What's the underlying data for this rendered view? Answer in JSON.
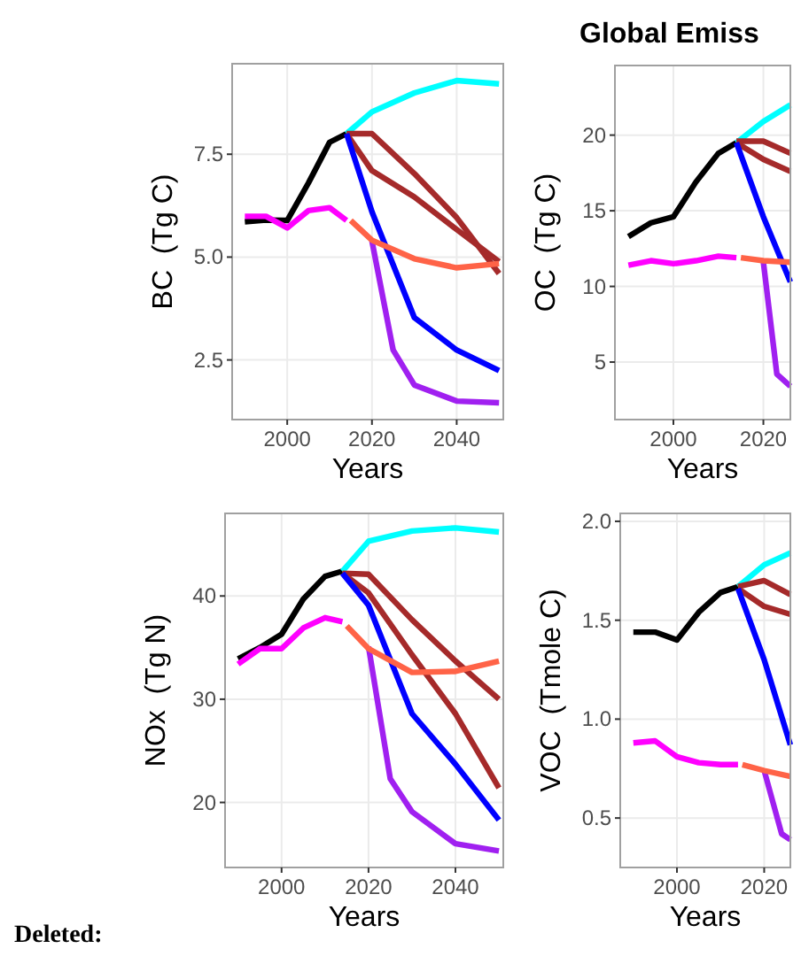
{
  "chart_data": [
    {
      "type": "line",
      "ylabel": "BC  (Tg C)",
      "xlabel": "Years",
      "xlim": [
        1987,
        2051
      ],
      "xticks": [
        2000,
        2020,
        2040
      ],
      "ylim": [
        1.05,
        9.7
      ],
      "yticks": [
        2.5,
        {
          "value": 5,
          "label": "5.0"
        },
        7.5
      ],
      "grid": true,
      "line_style": "solid",
      "series": [
        {
          "color": "#000000",
          "x": [
            1990,
            1995,
            2000,
            2005,
            2010,
            2014
          ],
          "values": [
            5.86,
            5.9,
            5.89,
            6.8,
            7.79,
            8.0
          ]
        },
        {
          "color": "#ff00ff",
          "x": [
            1990,
            1995,
            2000,
            2005,
            2010,
            2014
          ],
          "values": [
            5.99,
            5.99,
            5.71,
            6.13,
            6.2,
            5.89
          ]
        },
        {
          "color": "#00ffff",
          "x": [
            2014,
            2020,
            2030,
            2040,
            2050
          ],
          "values": [
            8.0,
            8.53,
            8.99,
            9.29,
            9.21
          ]
        },
        {
          "color": "#a52a2a",
          "x": [
            2014,
            2020,
            2030,
            2040,
            2050
          ],
          "values": [
            8.0,
            8.0,
            7.03,
            5.96,
            4.6
          ]
        },
        {
          "color": "#a52a2a",
          "x": [
            2014,
            2020,
            2030,
            2040,
            2050
          ],
          "values": [
            8.0,
            7.1,
            6.46,
            5.67,
            4.89
          ]
        },
        {
          "color": "#0000ff",
          "x": [
            2014,
            2020,
            2030,
            2040,
            2050
          ],
          "values": [
            8.0,
            6.1,
            3.53,
            2.74,
            2.24
          ]
        },
        {
          "color": "#a020f0",
          "x": [
            2020,
            2025,
            2030,
            2040,
            2050
          ],
          "values": [
            5.39,
            2.74,
            1.89,
            1.5,
            1.46
          ]
        },
        {
          "color": "#ff6347",
          "x": [
            2015,
            2020,
            2030,
            2040,
            2050
          ],
          "values": [
            5.89,
            5.41,
            4.96,
            4.74,
            4.84
          ]
        }
      ]
    },
    {
      "type": "line",
      "title": "Global Emiss",
      "ylabel": "OC  (Tg C)",
      "xlabel": "Years",
      "xlim": [
        1987,
        2026
      ],
      "xticks": [
        2000,
        2020
      ],
      "ylim": [
        1.2,
        24.6
      ],
      "yticks": [
        5,
        10,
        15,
        20
      ],
      "grid": true,
      "line_style": "solid",
      "series": [
        {
          "color": "#000000",
          "x": [
            1990,
            1995,
            2000,
            2005,
            2010,
            2014
          ],
          "values": [
            13.3,
            14.2,
            14.6,
            16.9,
            18.8,
            19.5
          ]
        },
        {
          "color": "#ff00ff",
          "x": [
            1990,
            1995,
            2000,
            2005,
            2010,
            2014
          ],
          "values": [
            11.4,
            11.7,
            11.5,
            11.7,
            12.0,
            11.9
          ]
        },
        {
          "color": "#00ffff",
          "x": [
            2014,
            2020,
            2026
          ],
          "values": [
            19.5,
            20.9,
            22.0
          ]
        },
        {
          "color": "#a52a2a",
          "x": [
            2014,
            2020,
            2026
          ],
          "values": [
            19.6,
            19.6,
            18.8
          ]
        },
        {
          "color": "#a52a2a",
          "x": [
            2014,
            2020,
            2026
          ],
          "values": [
            19.5,
            18.4,
            17.6
          ]
        },
        {
          "color": "#0000ff",
          "x": [
            2014,
            2020,
            2026
          ],
          "values": [
            19.5,
            14.6,
            10.3
          ]
        },
        {
          "color": "#a020f0",
          "x": [
            2020,
            2023,
            2026
          ],
          "values": [
            11.6,
            4.2,
            3.4
          ]
        },
        {
          "color": "#ff6347",
          "x": [
            2015,
            2020,
            2026
          ],
          "values": [
            11.9,
            11.7,
            11.6
          ]
        }
      ]
    },
    {
      "type": "line",
      "ylabel": "NOx  (Tg N)",
      "xlabel": "Years",
      "xlim": [
        1987,
        2051
      ],
      "xticks": [
        2000,
        2020,
        2040
      ],
      "ylim": [
        13.7,
        48
      ],
      "yticks": [
        20,
        30,
        40
      ],
      "grid": true,
      "line_style": "solid",
      "annotations": [
        "Deleted:"
      ],
      "series": [
        {
          "color": "#000000",
          "x": [
            1990,
            1995,
            2000,
            2005,
            2010,
            2014
          ],
          "values": [
            33.9,
            35.0,
            36.3,
            39.7,
            41.9,
            42.4
          ]
        },
        {
          "color": "#ff00ff",
          "x": [
            1990,
            1995,
            2000,
            2005,
            2010,
            2014
          ],
          "values": [
            33.4,
            34.9,
            34.9,
            36.9,
            37.9,
            37.5
          ]
        },
        {
          "color": "#00ffff",
          "x": [
            2014,
            2020,
            2030,
            2040,
            2050
          ],
          "values": [
            42.4,
            45.3,
            46.3,
            46.6,
            46.2
          ]
        },
        {
          "color": "#a52a2a",
          "x": [
            2014,
            2020,
            2030,
            2040,
            2050
          ],
          "values": [
            42.2,
            42.1,
            37.7,
            33.7,
            30.0
          ]
        },
        {
          "color": "#a52a2a",
          "x": [
            2014,
            2020,
            2030,
            2040,
            2050
          ],
          "values": [
            42.2,
            40.3,
            34.3,
            28.6,
            21.4
          ]
        },
        {
          "color": "#0000ff",
          "x": [
            2014,
            2020,
            2030,
            2040,
            2050
          ],
          "values": [
            42.2,
            39.1,
            28.6,
            23.7,
            18.3
          ]
        },
        {
          "color": "#a020f0",
          "x": [
            2020,
            2025,
            2030,
            2040,
            2050
          ],
          "values": [
            35.1,
            22.3,
            19.1,
            16.0,
            15.3
          ]
        },
        {
          "color": "#ff6347",
          "x": [
            2015,
            2020,
            2030,
            2040,
            2050
          ],
          "values": [
            37.1,
            34.9,
            32.6,
            32.7,
            33.7
          ]
        }
      ]
    },
    {
      "type": "line",
      "ylabel": "VOC  (Tmole C)",
      "xlabel": "Years",
      "xlim": [
        1987,
        2026
      ],
      "xticks": [
        2000,
        2020
      ],
      "ylim": [
        0.25,
        2.04
      ],
      "yticks": [
        {
          "value": 0.5,
          "label": "0.5"
        },
        {
          "value": 1,
          "label": "1.0"
        },
        {
          "value": 1.5,
          "label": "1.5"
        },
        {
          "value": 2,
          "label": "2.0"
        }
      ],
      "grid": true,
      "line_style": "solid",
      "series": [
        {
          "color": "#000000",
          "x": [
            1990,
            1995,
            2000,
            2005,
            2010,
            2014
          ],
          "values": [
            1.44,
            1.44,
            1.4,
            1.54,
            1.64,
            1.67
          ]
        },
        {
          "color": "#ff00ff",
          "x": [
            1990,
            1995,
            2000,
            2005,
            2010,
            2014
          ],
          "values": [
            0.88,
            0.89,
            0.81,
            0.78,
            0.77,
            0.77
          ]
        },
        {
          "color": "#00ffff",
          "x": [
            2014,
            2020,
            2026
          ],
          "values": [
            1.67,
            1.78,
            1.84
          ]
        },
        {
          "color": "#a52a2a",
          "x": [
            2014,
            2020,
            2026
          ],
          "values": [
            1.67,
            1.7,
            1.63
          ]
        },
        {
          "color": "#a52a2a",
          "x": [
            2014,
            2020,
            2026
          ],
          "values": [
            1.66,
            1.57,
            1.53
          ]
        },
        {
          "color": "#0000ff",
          "x": [
            2014,
            2020,
            2026
          ],
          "values": [
            1.66,
            1.3,
            0.87
          ]
        },
        {
          "color": "#a020f0",
          "x": [
            2020,
            2024,
            2026
          ],
          "values": [
            0.74,
            0.42,
            0.39
          ]
        },
        {
          "color": "#ff6347",
          "x": [
            2015,
            2020,
            2026
          ],
          "values": [
            0.77,
            0.74,
            0.71
          ]
        }
      ]
    }
  ]
}
